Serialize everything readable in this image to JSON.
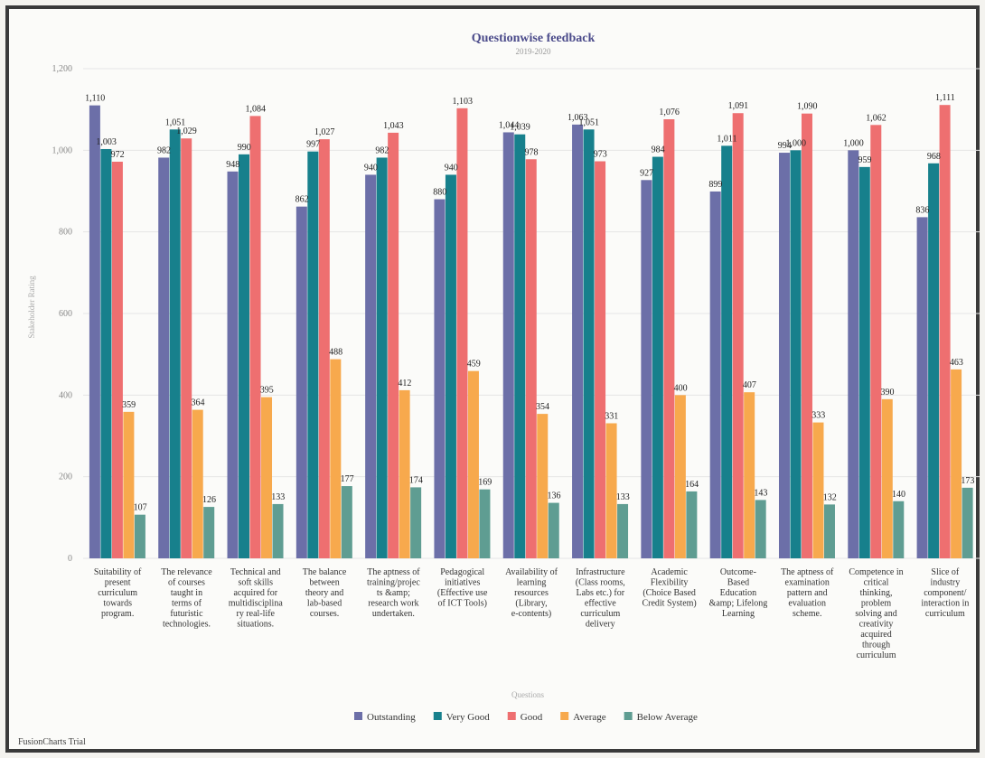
{
  "chart_data": {
    "type": "bar",
    "title": "Questionwise feedback",
    "subtitle": "2019-2020",
    "xlabel": "Questions",
    "ylabel": "Stakeholder Rating",
    "ylim": [
      0,
      1200
    ],
    "yticks": [
      0,
      200,
      400,
      600,
      800,
      1000,
      1200
    ],
    "ytick_labels": [
      "0",
      "200",
      "400",
      "600",
      "800",
      "1,000",
      "1,200"
    ],
    "grid": true,
    "legend_position": "bottom",
    "categories": [
      "Suitability of present curriculum towards program.",
      "The relevance of courses taught in terms of futuristic technologies.",
      "Technical and soft skills acquired for multidisciplinary real-life situations.",
      "The balance between theory and lab-based courses.",
      "The aptness of training/projects &amp; research work undertaken.",
      "Pedagogical initiatives (Effective use of ICT Tools)",
      "Availability of learning resources (Library, e-contents)",
      "Infrastructure (Class rooms, Labs etc.) for effective curriculum delivery",
      "Academic Flexibility (Choice Based Credit System)",
      "Outcome-Based Education &amp; Lifelong Learning",
      "The aptness of examination pattern and evaluation scheme.",
      "Competence in critical thinking, problem solving and creativity acquired through curriculum",
      "Slice of industry component/ interaction in curriculum"
    ],
    "category_label_lines": [
      [
        "Suitability of",
        "present",
        "curriculum",
        "towards",
        "program."
      ],
      [
        "The relevance",
        "of courses",
        "taught in",
        "terms of",
        "futuristic",
        "technologies."
      ],
      [
        "Technical and",
        "soft skills",
        "acquired for",
        "multidisciplina",
        "ry real-life",
        "situations."
      ],
      [
        "The balance",
        "between",
        "theory and",
        "lab-based",
        "courses."
      ],
      [
        "The aptness of",
        "training/projec",
        "ts &amp;",
        "research work",
        "undertaken."
      ],
      [
        "Pedagogical",
        "initiatives",
        "(Effective use",
        "of ICT Tools)"
      ],
      [
        "Availability of",
        "learning",
        "resources",
        "(Library,",
        "e-contents)"
      ],
      [
        "Infrastructure",
        "(Class rooms,",
        "Labs etc.) for",
        "effective",
        "curriculum",
        "delivery"
      ],
      [
        "Academic",
        "Flexibility",
        "(Choice Based",
        "Credit System)"
      ],
      [
        "Outcome-",
        "Based",
        "Education",
        "&amp; Lifelong",
        "Learning"
      ],
      [
        "The aptness of",
        "examination",
        "pattern and",
        "evaluation",
        "scheme."
      ],
      [
        "Competence in",
        "critical",
        "thinking,",
        "problem",
        "solving and",
        "creativity",
        "acquired",
        "through",
        "curriculum"
      ],
      [
        "Slice of",
        "industry",
        "component/",
        "interaction in",
        "curriculum"
      ]
    ],
    "series": [
      {
        "name": "Outstanding",
        "color": "#6c6fa8",
        "values": [
          1110,
          982,
          948,
          862,
          940,
          880,
          1044,
          1063,
          927,
          899,
          994,
          1000,
          836
        ],
        "labels": [
          "1,110",
          "982",
          "948",
          "862",
          "940",
          "880",
          "1,044",
          "1,063",
          "927",
          "899",
          "994",
          "1,000",
          "836"
        ]
      },
      {
        "name": "Very Good",
        "color": "#17808c",
        "values": [
          1003,
          1051,
          990,
          997,
          982,
          940,
          1039,
          1051,
          984,
          1011,
          1000,
          959,
          968
        ],
        "labels": [
          "1,003",
          "1,051",
          "990",
          "997",
          "982",
          "940",
          "1,039",
          "1,051",
          "984",
          "1,011",
          "1,000",
          "959",
          "968"
        ]
      },
      {
        "name": "Good",
        "color": "#ee6f70",
        "values": [
          972,
          1029,
          1084,
          1027,
          1043,
          1103,
          978,
          973,
          1076,
          1091,
          1090,
          1062,
          1111
        ],
        "labels": [
          "972",
          "1,029",
          "1,084",
          "1,027",
          "1,043",
          "1,103",
          "978",
          "973",
          "1,076",
          "1,091",
          "1,090",
          "1,062",
          "1,111"
        ]
      },
      {
        "name": "Average",
        "color": "#f7a94d",
        "values": [
          359,
          364,
          395,
          488,
          412,
          459,
          354,
          331,
          400,
          407,
          333,
          390,
          463
        ],
        "labels": [
          "359",
          "364",
          "395",
          "488",
          "412",
          "459",
          "354",
          "331",
          "400",
          "407",
          "333",
          "390",
          "463"
        ]
      },
      {
        "name": "Below Average",
        "color": "#5f9d92",
        "values": [
          107,
          126,
          133,
          177,
          174,
          169,
          136,
          133,
          164,
          143,
          132,
          140,
          173
        ],
        "labels": [
          "107",
          "126",
          "133",
          "177",
          "174",
          "169",
          "136",
          "133",
          "164",
          "143",
          "132",
          "140",
          "173"
        ]
      }
    ]
  },
  "credits": "FusionCharts Trial"
}
